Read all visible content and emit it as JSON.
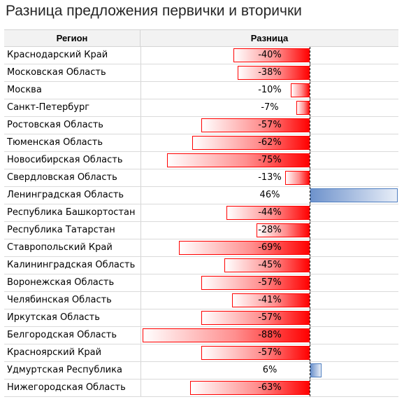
{
  "title": "Разница предложения первички и вторички",
  "chart_data": {
    "type": "table",
    "columns": [
      "Регион",
      "Разница"
    ],
    "rows": [
      {
        "region": "Краснодарский Край",
        "value": -40,
        "label": "-40%"
      },
      {
        "region": "Московская Область",
        "value": -38,
        "label": "-38%"
      },
      {
        "region": "Москва",
        "value": -10,
        "label": "-10%"
      },
      {
        "region": "Санкт-Петербург",
        "value": -7,
        "label": "-7%"
      },
      {
        "region": "Ростовская Область",
        "value": -57,
        "label": "-57%"
      },
      {
        "region": "Тюменская Область",
        "value": -62,
        "label": "-62%"
      },
      {
        "region": "Новосибирская Область",
        "value": -75,
        "label": "-75%"
      },
      {
        "region": "Свердловская Область",
        "value": -13,
        "label": "-13%"
      },
      {
        "region": "Ленинградская Область",
        "value": 46,
        "label": "46%"
      },
      {
        "region": "Республика Башкортостан",
        "value": -44,
        "label": "-44%"
      },
      {
        "region": "Республика Татарстан",
        "value": -28,
        "label": "-28%"
      },
      {
        "region": "Ставропольский Край",
        "value": -69,
        "label": "-69%"
      },
      {
        "region": "Калининградская Область",
        "value": -45,
        "label": "-45%"
      },
      {
        "region": "Воронежская Область",
        "value": -57,
        "label": "-57%"
      },
      {
        "region": "Челябинская Область",
        "value": -41,
        "label": "-41%"
      },
      {
        "region": "Иркутская Область",
        "value": -57,
        "label": "-57%"
      },
      {
        "region": "Белгородская Область",
        "value": -88,
        "label": "-88%"
      },
      {
        "region": "Красноярский Край",
        "value": -57,
        "label": "-57%"
      },
      {
        "region": "Удмуртская Республика",
        "value": 6,
        "label": "6%"
      },
      {
        "region": "Нижегородская Область",
        "value": -63,
        "label": "-63%"
      }
    ],
    "negative_color": "#ff0000",
    "positive_color": "#6f93cc"
  }
}
